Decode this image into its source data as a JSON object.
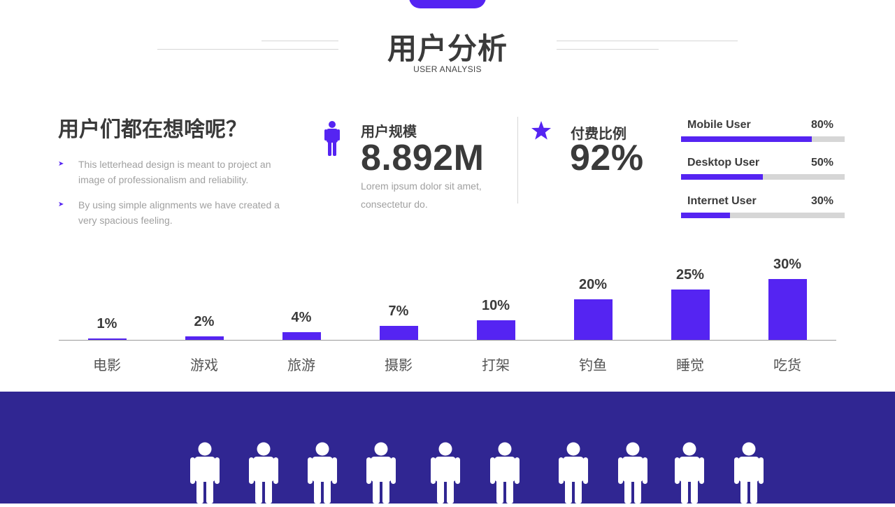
{
  "header": {
    "title": "用户分析",
    "subtitle": "USER ANALYSIS"
  },
  "intro": {
    "question": "用户们都在想啥呢？",
    "bullets": [
      "This letterhead design is meant to project an image of professionalism and reliability.",
      "By using simple alignments we have created a very spacious feeling."
    ]
  },
  "stats": {
    "user_scale": {
      "icon": "person-icon",
      "label": "用户规模",
      "value": "8.892M",
      "desc": "Lorem ipsum dolor sit amet, consectetur do."
    },
    "paid_ratio": {
      "icon": "star-icon",
      "label": "付费比例",
      "value": "92%"
    }
  },
  "progress": [
    {
      "name": "Mobile User",
      "pct_label": "80%",
      "value": 0.8
    },
    {
      "name": "Desktop User",
      "pct_label": "50%",
      "value": 0.5
    },
    {
      "name": "Internet User",
      "pct_label": "30%",
      "value": 0.3
    }
  ],
  "chart_data": {
    "type": "bar",
    "categories": [
      "电影",
      "游戏",
      "旅游",
      "摄影",
      "打架",
      "钓鱼",
      "睡觉",
      "吃货"
    ],
    "values": [
      1,
      2,
      4,
      7,
      10,
      20,
      25,
      30
    ],
    "value_labels": [
      "1%",
      "2%",
      "4%",
      "7%",
      "10%",
      "20%",
      "25%",
      "30%"
    ],
    "unit": "%",
    "title": "",
    "xlabel": "",
    "ylabel": "",
    "grid": false
  },
  "colors": {
    "accent": "#5524f2",
    "band": "#302692",
    "track": "#d6d6d6",
    "text": "#3a3a3a"
  },
  "bottom_band": {
    "icon": "person-icon",
    "count": 10
  }
}
